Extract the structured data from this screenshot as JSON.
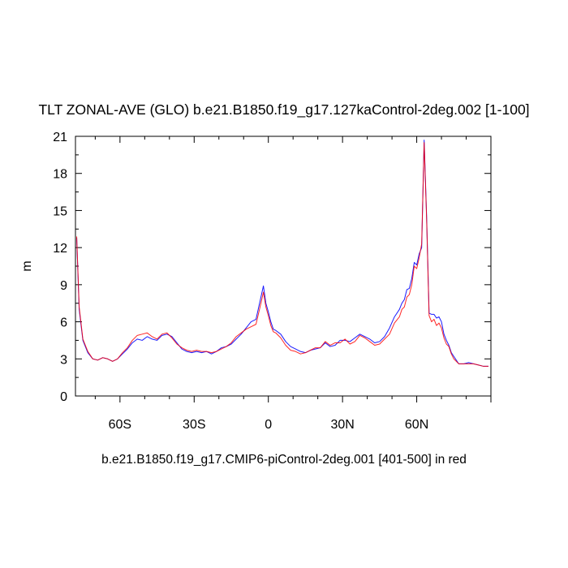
{
  "chart_data": {
    "type": "line",
    "title": "TLT ZONAL-AVE (GLO) b.e21.B1850.f19_g17.127kaControl-2deg.002 [1-100]",
    "ylabel": "m",
    "caption": "b.e21.B1850.f19_g17.CMIP6-piControl-2deg.001 [401-500] in red",
    "xlim": [
      -78,
      90
    ],
    "ylim": [
      0,
      21
    ],
    "x_ticks": [
      {
        "value": -60,
        "label": "60S"
      },
      {
        "value": -30,
        "label": "30S"
      },
      {
        "value": 0,
        "label": "0"
      },
      {
        "value": 30,
        "label": "30N"
      },
      {
        "value": 60,
        "label": "60N"
      }
    ],
    "y_ticks": [
      {
        "value": 0,
        "label": "0"
      },
      {
        "value": 3,
        "label": "3"
      },
      {
        "value": 6,
        "label": "6"
      },
      {
        "value": 9,
        "label": "9"
      },
      {
        "value": 12,
        "label": "12"
      },
      {
        "value": 15,
        "label": "15"
      },
      {
        "value": 18,
        "label": "18"
      },
      {
        "value": 21,
        "label": "21"
      }
    ],
    "colors": {
      "blue": "#0000ff",
      "red": "#ff0000"
    },
    "series": [
      {
        "color": "#0000ff",
        "x": [
          -77.5,
          -76.5,
          -75,
          -73,
          -71,
          -69,
          -67,
          -65,
          -63,
          -61,
          -59,
          -57,
          -55,
          -53,
          -51,
          -49,
          -47,
          -45,
          -43,
          -41,
          -39,
          -37,
          -35,
          -33,
          -31,
          -29,
          -27,
          -25,
          -23,
          -21,
          -19,
          -17,
          -15,
          -13,
          -11,
          -9,
          -7,
          -5,
          -3,
          -2,
          -1,
          0,
          1,
          2,
          3,
          5,
          7,
          9,
          11,
          13,
          15,
          17,
          19,
          21,
          23,
          25,
          27,
          29,
          31,
          33,
          35,
          37,
          39,
          41,
          43,
          45,
          47,
          49,
          51,
          53,
          54,
          55,
          56,
          57,
          58,
          59,
          60,
          61,
          62,
          63,
          64,
          65,
          66,
          67,
          68,
          69,
          70,
          71,
          72,
          73,
          74,
          75,
          77,
          79,
          81,
          83,
          85,
          87,
          89
        ],
        "y": [
          12.8,
          7.0,
          4.5,
          3.5,
          3.0,
          2.9,
          3.1,
          3.0,
          2.8,
          3.0,
          3.4,
          3.8,
          4.3,
          4.6,
          4.5,
          4.8,
          4.6,
          4.5,
          4.9,
          5.0,
          4.8,
          4.3,
          3.8,
          3.6,
          3.5,
          3.6,
          3.5,
          3.6,
          3.4,
          3.6,
          3.9,
          4.0,
          4.2,
          4.6,
          5.0,
          5.5,
          6.0,
          6.2,
          8.0,
          8.9,
          7.5,
          6.8,
          6.0,
          5.4,
          5.3,
          5.0,
          4.4,
          4.0,
          3.8,
          3.6,
          3.5,
          3.7,
          3.8,
          3.9,
          4.3,
          4.0,
          4.1,
          4.5,
          4.5,
          4.4,
          4.7,
          5.0,
          4.8,
          4.6,
          4.3,
          4.4,
          4.8,
          5.5,
          6.4,
          7.0,
          7.5,
          7.8,
          8.6,
          8.7,
          9.5,
          10.8,
          10.6,
          11.5,
          12.0,
          20.7,
          14.5,
          6.7,
          6.6,
          6.6,
          6.3,
          6.4,
          6.0,
          5.0,
          4.5,
          4.1,
          3.5,
          3.2,
          2.6,
          2.6,
          2.7,
          2.6,
          2.5,
          2.4,
          2.4
        ]
      },
      {
        "color": "#ff0000",
        "x": [
          -77.5,
          -76.5,
          -75,
          -73,
          -71,
          -69,
          -67,
          -65,
          -63,
          -61,
          -59,
          -57,
          -55,
          -53,
          -51,
          -49,
          -47,
          -45,
          -43,
          -41,
          -39,
          -37,
          -35,
          -33,
          -31,
          -29,
          -27,
          -25,
          -23,
          -21,
          -19,
          -17,
          -15,
          -13,
          -11,
          -9,
          -7,
          -5,
          -3,
          -2,
          -1,
          0,
          1,
          2,
          3,
          5,
          7,
          9,
          11,
          13,
          15,
          17,
          19,
          21,
          23,
          25,
          27,
          29,
          31,
          33,
          35,
          37,
          39,
          41,
          43,
          45,
          47,
          49,
          51,
          53,
          54,
          55,
          56,
          57,
          58,
          59,
          60,
          61,
          62,
          63,
          64,
          65,
          66,
          67,
          68,
          69,
          70,
          71,
          72,
          73,
          74,
          75,
          77,
          79,
          81,
          83,
          85,
          87,
          89
        ],
        "y": [
          12.9,
          7.2,
          4.6,
          3.6,
          3.0,
          2.9,
          3.1,
          3.0,
          2.8,
          3.0,
          3.5,
          3.9,
          4.5,
          4.9,
          5.0,
          5.1,
          4.8,
          4.6,
          5.0,
          5.1,
          4.7,
          4.2,
          3.9,
          3.7,
          3.6,
          3.7,
          3.6,
          3.6,
          3.5,
          3.6,
          3.8,
          4.0,
          4.3,
          4.8,
          5.1,
          5.4,
          5.6,
          5.8,
          7.5,
          8.4,
          7.2,
          6.5,
          5.7,
          5.2,
          5.1,
          4.7,
          4.1,
          3.7,
          3.6,
          3.4,
          3.5,
          3.7,
          3.9,
          3.9,
          4.4,
          4.1,
          4.3,
          4.3,
          4.6,
          4.2,
          4.4,
          4.9,
          4.7,
          4.4,
          4.1,
          4.2,
          4.6,
          5.0,
          5.9,
          6.4,
          7.0,
          7.2,
          8.0,
          8.2,
          9.0,
          10.5,
          10.3,
          11.2,
          12.3,
          20.5,
          14.3,
          6.5,
          6.0,
          6.2,
          5.7,
          5.9,
          5.5,
          4.7,
          4.2,
          4.0,
          3.4,
          3.0,
          2.6,
          2.6,
          2.6,
          2.6,
          2.5,
          2.4,
          2.4
        ]
      }
    ]
  }
}
